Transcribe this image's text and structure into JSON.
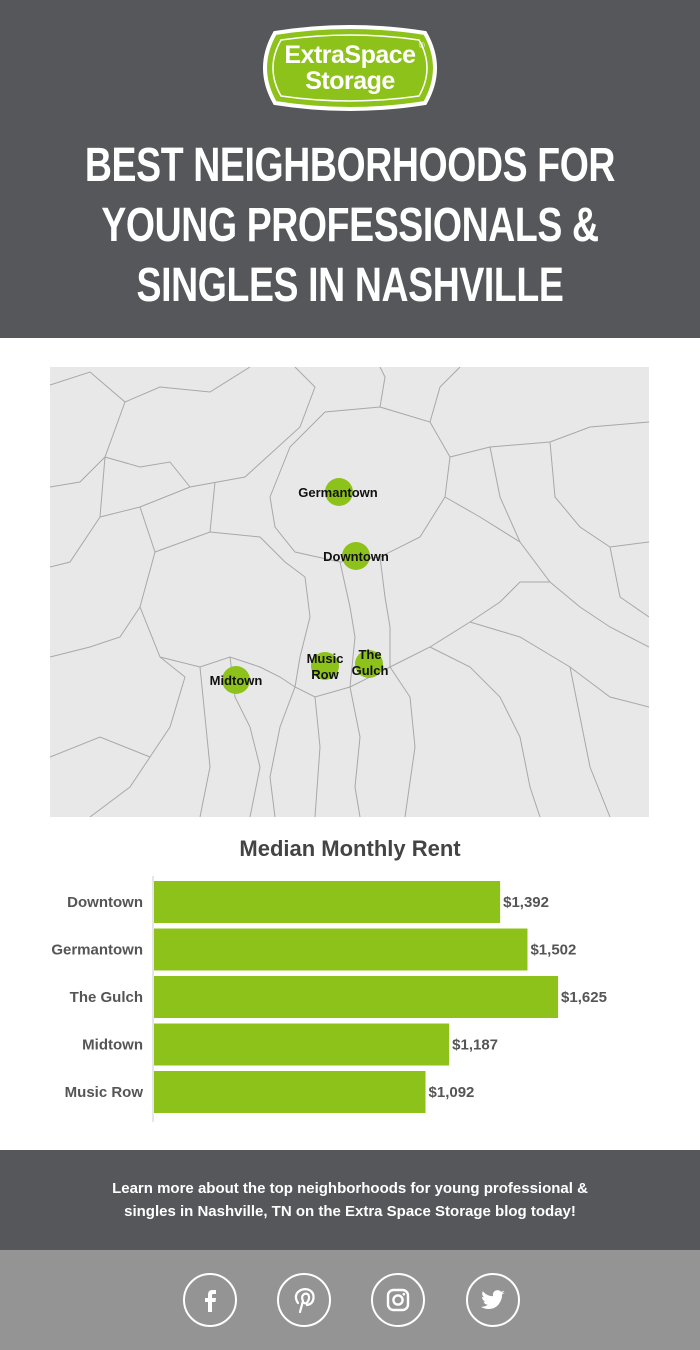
{
  "header": {
    "logo": {
      "line1": "ExtraSpace",
      "line2": "Storage",
      "reg": "®",
      "color": "#8dc21a"
    },
    "title_lines": [
      "BEST NEIGHBORHOODS FOR",
      "YOUNG PROFESSIONALS &",
      "SINGLES IN NASHVILLE"
    ]
  },
  "map": {
    "pins": [
      {
        "name": "Germantown",
        "label": "Germantown"
      },
      {
        "name": "Downtown",
        "label": "Downtown"
      },
      {
        "name": "Music Row",
        "label_lines": [
          "Music",
          "Row"
        ]
      },
      {
        "name": "The Gulch",
        "label_lines": [
          "The",
          "Gulch"
        ]
      },
      {
        "name": "Midtown",
        "label": "Midtown"
      }
    ],
    "pin_color": "#8dc21a"
  },
  "chart_data": {
    "type": "bar",
    "orientation": "horizontal",
    "title": "Median Monthly Rent",
    "categories": [
      "Downtown",
      "Germantown",
      "The Gulch",
      "Midtown",
      "Music Row"
    ],
    "values": [
      1392,
      1502,
      1625,
      1187,
      1092
    ],
    "value_labels": [
      "$1,392",
      "$1,502",
      "$1,625",
      "$1,187",
      "$1,092"
    ],
    "xlim": [
      0,
      1850
    ],
    "grid": false,
    "bar_color": "#8dc21a"
  },
  "footer": {
    "lines": [
      "Learn more about the top neighborhoods for young professional &",
      "singles in Nashville, TN on the Extra Space Storage blog today!"
    ]
  },
  "social": [
    {
      "icon": "facebook-icon"
    },
    {
      "icon": "pinterest-icon"
    },
    {
      "icon": "instagram-icon"
    },
    {
      "icon": "twitter-icon"
    }
  ]
}
